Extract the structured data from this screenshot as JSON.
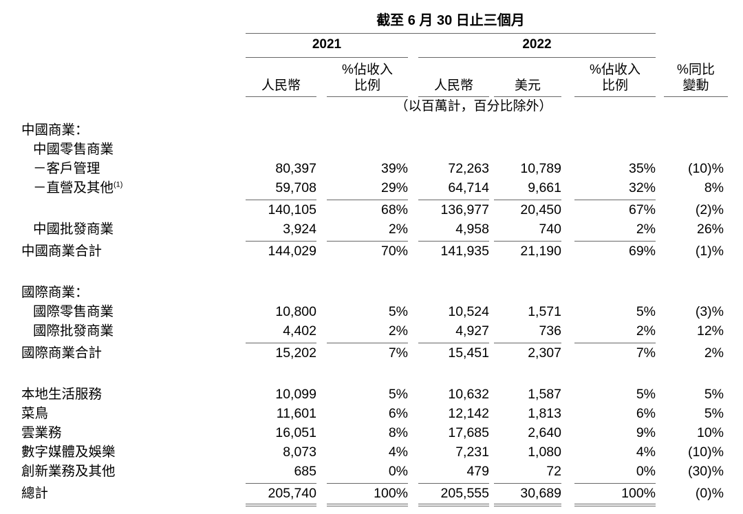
{
  "table": {
    "period_header": "截至 6 月 30 日止三個月",
    "year_2021": "2021",
    "year_2022": "2022",
    "col_headers": {
      "rmb": "人民幣",
      "pct_share_line1": "%佔收入",
      "pct_share_line2": "比例",
      "usd": "美元",
      "yoy_line1": "%同比",
      "yoy_line2": "變動"
    },
    "note": "（以百萬計，百分比除外）",
    "rows": [
      {
        "label": "中國商業：",
        "indent": 0
      },
      {
        "label": "中國零售商業",
        "indent": 1
      },
      {
        "label": "－客戶管理",
        "indent": 1,
        "vals": [
          "80,397",
          "39%",
          "72,263",
          "10,789",
          "35%",
          "(10)%"
        ]
      },
      {
        "label": "－直營及其他",
        "sup": "(1)",
        "indent": 1,
        "vals": [
          "59,708",
          "29%",
          "64,714",
          "9,661",
          "32%",
          "8%"
        ],
        "rule": "single"
      },
      {
        "label": "",
        "indent": 0,
        "vals": [
          "140,105",
          "68%",
          "136,977",
          "20,450",
          "67%",
          "(2)%"
        ]
      },
      {
        "label": "中國批發商業",
        "indent": 1,
        "vals": [
          "3,924",
          "2%",
          "4,958",
          "740",
          "2%",
          "26%"
        ],
        "rule": "single"
      },
      {
        "label": "中國商業合計",
        "indent": 0,
        "vals": [
          "144,029",
          "70%",
          "141,935",
          "21,190",
          "69%",
          "(1)%"
        ]
      },
      {
        "spacer": true
      },
      {
        "label": "國際商業：",
        "indent": 0
      },
      {
        "label": "國際零售商業",
        "indent": 1,
        "vals": [
          "10,800",
          "5%",
          "10,524",
          "1,571",
          "5%",
          "(3)%"
        ]
      },
      {
        "label": "國際批發商業",
        "indent": 1,
        "vals": [
          "4,402",
          "2%",
          "4,927",
          "736",
          "2%",
          "12%"
        ],
        "rule": "single"
      },
      {
        "label": "國際商業合計",
        "indent": 0,
        "vals": [
          "15,202",
          "7%",
          "15,451",
          "2,307",
          "7%",
          "2%"
        ]
      },
      {
        "spacer": true
      },
      {
        "label": "本地生活服務",
        "indent": 0,
        "vals": [
          "10,099",
          "5%",
          "10,632",
          "1,587",
          "5%",
          "5%"
        ]
      },
      {
        "label": "菜鳥",
        "indent": 0,
        "vals": [
          "11,601",
          "6%",
          "12,142",
          "1,813",
          "6%",
          "5%"
        ]
      },
      {
        "label": "雲業務",
        "indent": 0,
        "vals": [
          "16,051",
          "8%",
          "17,685",
          "2,640",
          "9%",
          "10%"
        ]
      },
      {
        "label": "數字媒體及娛樂",
        "indent": 0,
        "vals": [
          "8,073",
          "4%",
          "7,231",
          "1,080",
          "4%",
          "(10)%"
        ]
      },
      {
        "label": "創新業務及其他",
        "indent": 0,
        "vals": [
          "685",
          "0%",
          "479",
          "72",
          "0%",
          "(30)%"
        ],
        "rule": "single"
      },
      {
        "label": "總計",
        "indent": 0,
        "vals": [
          "205,740",
          "100%",
          "205,555",
          "30,689",
          "100%",
          "(0)%"
        ],
        "rule": "double"
      }
    ]
  }
}
